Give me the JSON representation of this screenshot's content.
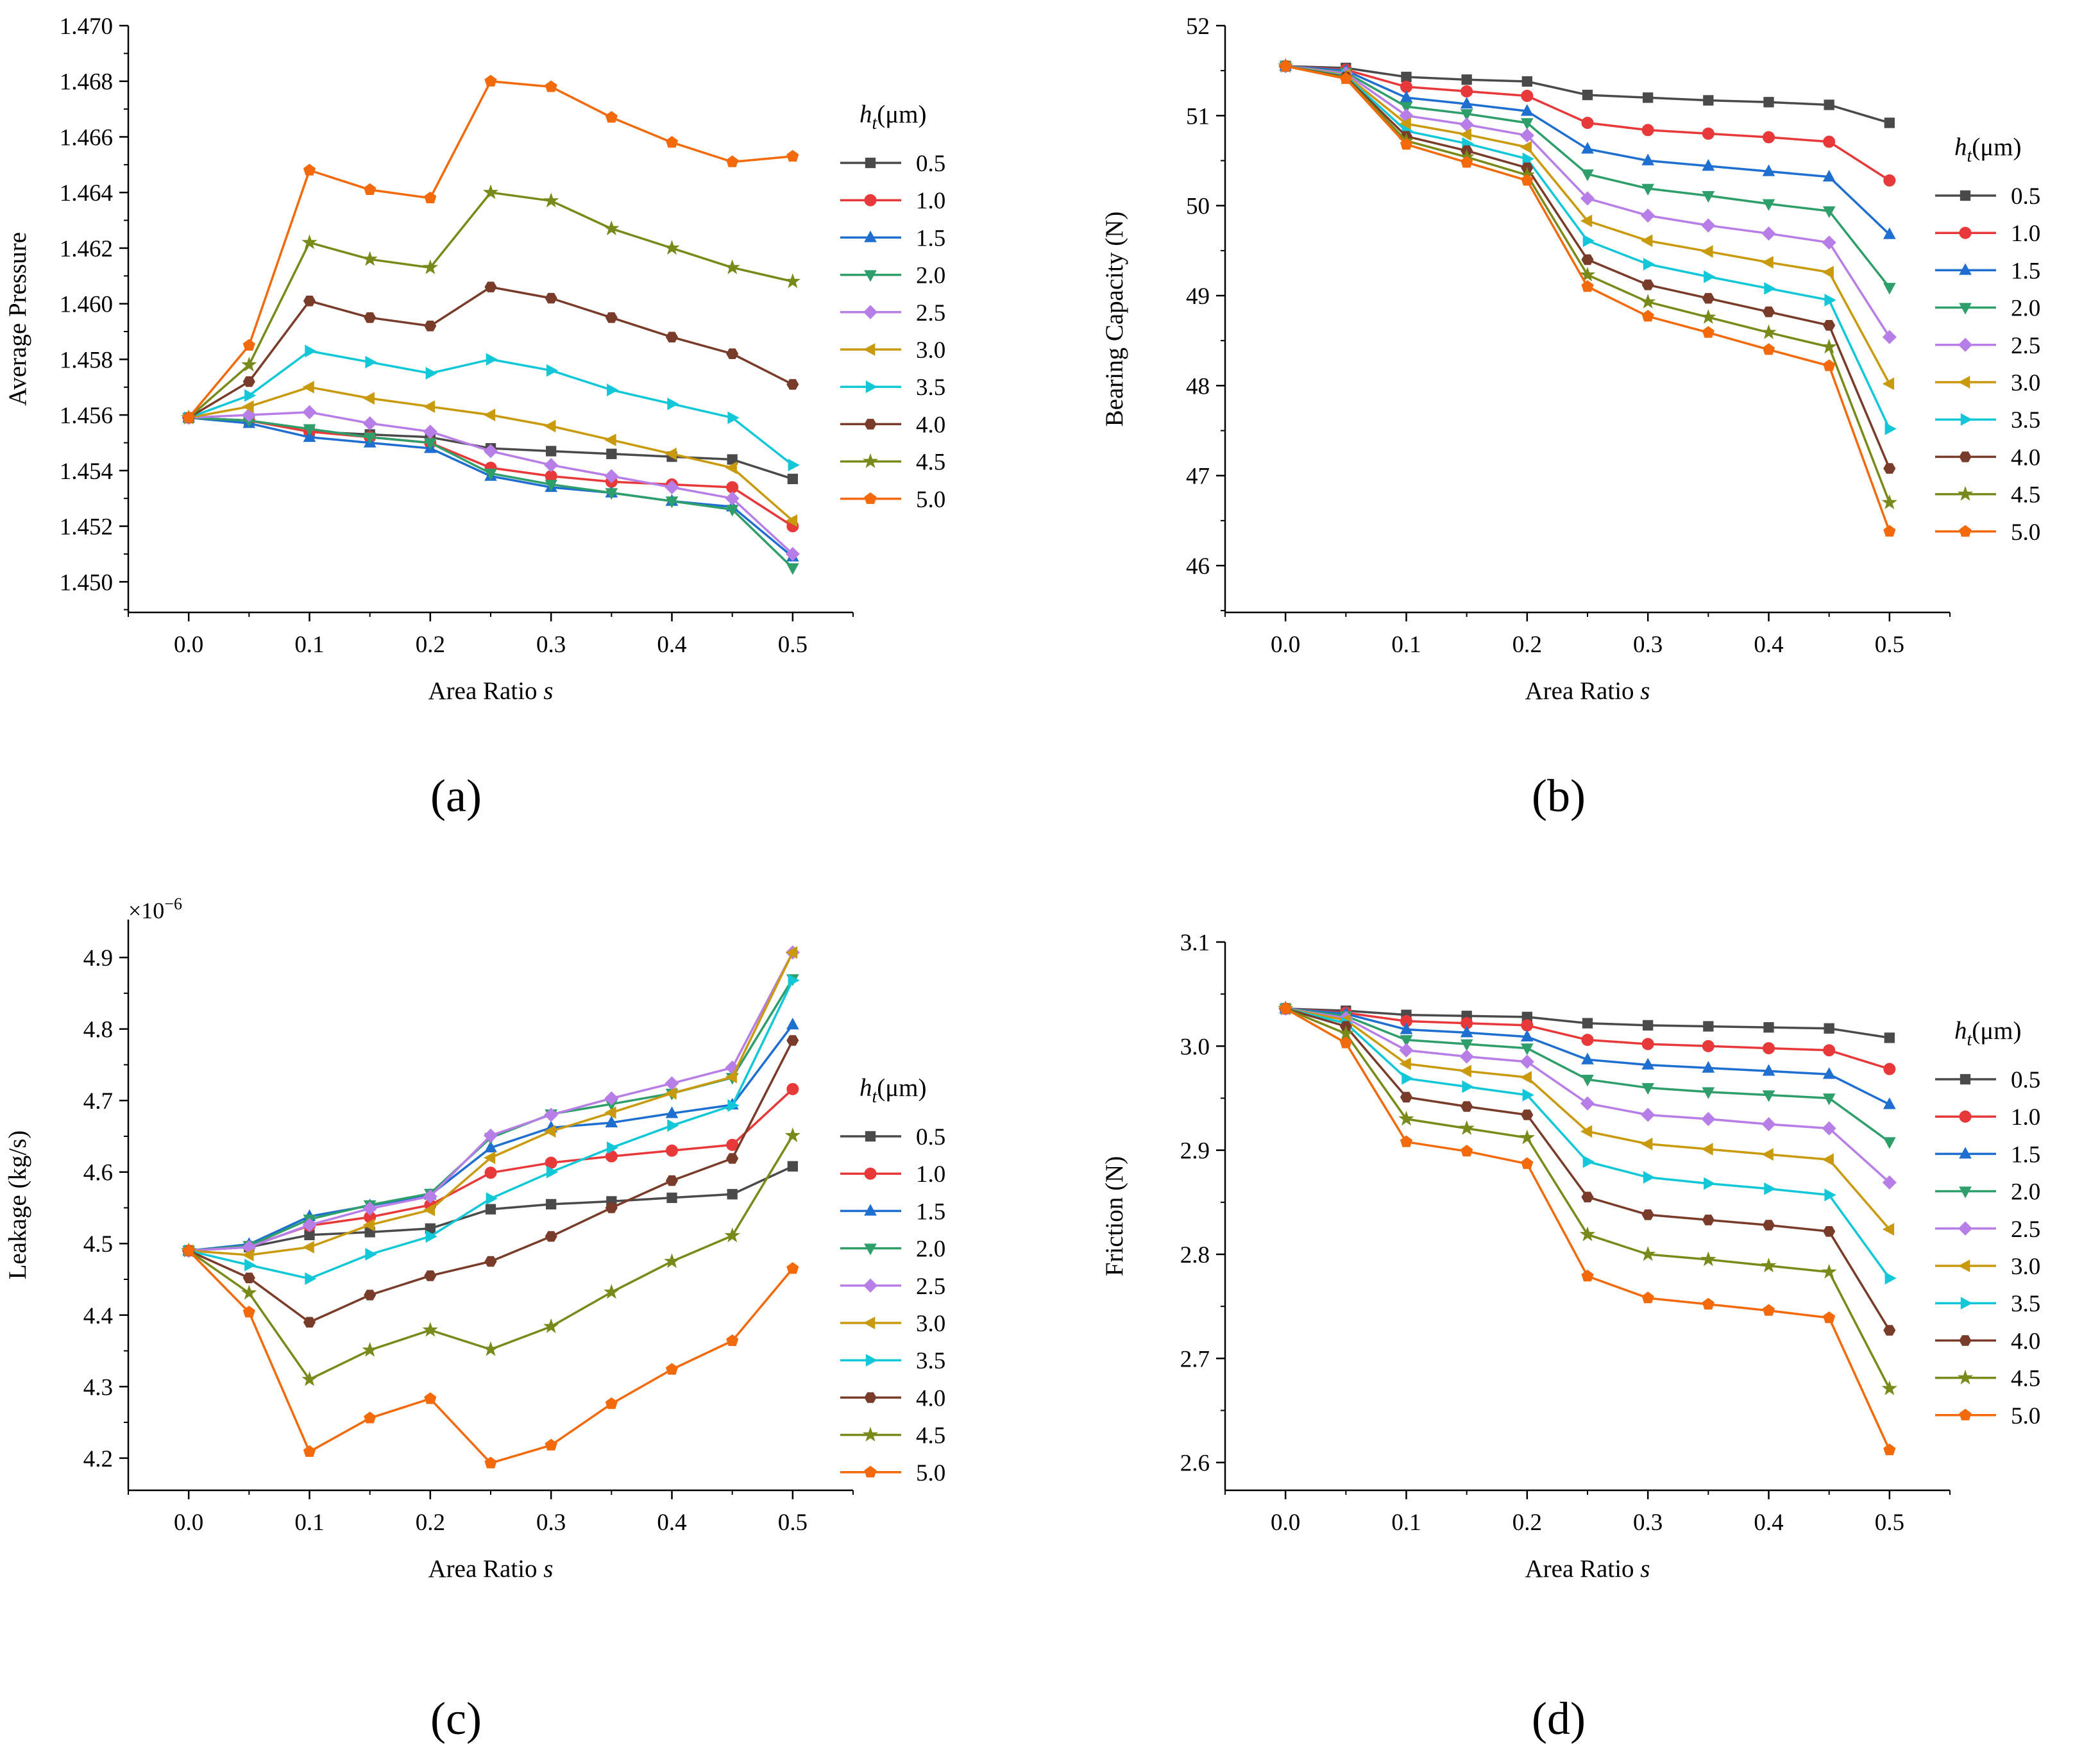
{
  "legend_title": "(μm)",
  "legend_title_var": "h",
  "legend_title_sub": "t",
  "series_colors": [
    "#4a4a4a",
    "#e8393a",
    "#1f6fd1",
    "#2e9e6a",
    "#b87ee8",
    "#c99a0e",
    "#12c7d8",
    "#7a3c2a",
    "#7a8a1a",
    "#f26a0c"
  ],
  "series_markers": [
    "square",
    "circle",
    "triangle-up",
    "triangle-down",
    "diamond",
    "triangle-left",
    "triangle-right",
    "hexagon",
    "star",
    "pentagon"
  ],
  "chart_data": [
    {
      "type": "line",
      "panel": "(a)",
      "title": "",
      "xlabel": "Area Ratio",
      "xlabel_var": "s",
      "ylabel": "Average Pressure",
      "x": [
        0.0,
        0.05,
        0.1,
        0.15,
        0.2,
        0.25,
        0.3,
        0.35,
        0.4,
        0.45,
        0.5
      ],
      "xlim": [
        -0.05,
        0.55
      ],
      "ylim": [
        1.4489,
        1.47
      ],
      "xticks": [
        0.0,
        0.1,
        0.2,
        0.3,
        0.4,
        0.5
      ],
      "xtick_labels": [
        "0.0",
        "0.1",
        "0.2",
        "0.3",
        "0.4",
        "0.5"
      ],
      "yticks": [
        1.45,
        1.452,
        1.454,
        1.456,
        1.458,
        1.46,
        1.462,
        1.464,
        1.466,
        1.468,
        1.47
      ],
      "ytick_labels": [
        "1.450",
        "1.452",
        "1.454",
        "1.456",
        "1.458",
        "1.460",
        "1.462",
        "1.464",
        "1.466",
        "1.468",
        "1.470"
      ],
      "multiplier": "",
      "series": [
        {
          "name": "0.5",
          "values": [
            1.4559,
            1.4558,
            1.4554,
            1.4553,
            1.4552,
            1.4548,
            1.4547,
            1.4546,
            1.4545,
            1.4544,
            1.4537
          ]
        },
        {
          "name": "1.0",
          "values": [
            1.4559,
            1.4558,
            1.4554,
            1.4552,
            1.455,
            1.4541,
            1.4538,
            1.4536,
            1.4535,
            1.4534,
            1.452
          ]
        },
        {
          "name": "1.5",
          "values": [
            1.4559,
            1.4557,
            1.4552,
            1.455,
            1.4548,
            1.4538,
            1.4534,
            1.4532,
            1.4529,
            1.4527,
            1.4509
          ]
        },
        {
          "name": "2.0",
          "values": [
            1.4559,
            1.4558,
            1.4555,
            1.4552,
            1.455,
            1.4539,
            1.4535,
            1.4532,
            1.4529,
            1.4526,
            1.4505
          ]
        },
        {
          "name": "2.5",
          "values": [
            1.4559,
            1.456,
            1.4561,
            1.4557,
            1.4554,
            1.4547,
            1.4542,
            1.4538,
            1.4534,
            1.453,
            1.451
          ]
        },
        {
          "name": "3.0",
          "values": [
            1.4559,
            1.4563,
            1.457,
            1.4566,
            1.4563,
            1.456,
            1.4556,
            1.4551,
            1.4546,
            1.4541,
            1.4522
          ]
        },
        {
          "name": "3.5",
          "values": [
            1.4559,
            1.4567,
            1.4583,
            1.4579,
            1.4575,
            1.458,
            1.4576,
            1.4569,
            1.4564,
            1.4559,
            1.4542
          ]
        },
        {
          "name": "4.0",
          "values": [
            1.4559,
            1.4572,
            1.4601,
            1.4595,
            1.4592,
            1.4606,
            1.4602,
            1.4595,
            1.4588,
            1.4582,
            1.4571
          ]
        },
        {
          "name": "4.5",
          "values": [
            1.4559,
            1.4578,
            1.4622,
            1.4616,
            1.4613,
            1.464,
            1.4637,
            1.4627,
            1.462,
            1.4613,
            1.4608
          ]
        },
        {
          "name": "5.0",
          "values": [
            1.4559,
            1.4585,
            1.4648,
            1.4641,
            1.4638,
            1.468,
            1.4678,
            1.4667,
            1.4658,
            1.4651,
            1.4653
          ]
        }
      ]
    },
    {
      "type": "line",
      "panel": "(b)",
      "title": "",
      "xlabel": "Area Ratio",
      "xlabel_var": "s",
      "ylabel": "Bearing Capacity (N)",
      "x": [
        0.0,
        0.05,
        0.1,
        0.15,
        0.2,
        0.25,
        0.3,
        0.35,
        0.4,
        0.45,
        0.5
      ],
      "xlim": [
        -0.05,
        0.55
      ],
      "ylim": [
        45.48,
        52.0
      ],
      "xticks": [
        0.0,
        0.1,
        0.2,
        0.3,
        0.4,
        0.5
      ],
      "xtick_labels": [
        "0.0",
        "0.1",
        "0.2",
        "0.3",
        "0.4",
        "0.5"
      ],
      "yticks": [
        46,
        47,
        48,
        49,
        50,
        51,
        52
      ],
      "ytick_labels": [
        "46",
        "47",
        "48",
        "49",
        "50",
        "51",
        "52"
      ],
      "multiplier": "",
      "series": [
        {
          "name": "0.5",
          "values": [
            51.55,
            51.53,
            51.43,
            51.4,
            51.38,
            51.23,
            51.2,
            51.17,
            51.15,
            51.12,
            50.92
          ]
        },
        {
          "name": "1.0",
          "values": [
            51.55,
            51.51,
            51.32,
            51.27,
            51.22,
            50.92,
            50.84,
            50.8,
            50.76,
            50.71,
            50.28
          ]
        },
        {
          "name": "1.5",
          "values": [
            51.55,
            51.5,
            51.2,
            51.13,
            51.05,
            50.63,
            50.5,
            50.44,
            50.38,
            50.32,
            49.68
          ]
        },
        {
          "name": "2.0",
          "values": [
            51.55,
            51.48,
            51.1,
            51.02,
            50.92,
            50.35,
            50.19,
            50.11,
            50.02,
            49.94,
            49.09
          ]
        },
        {
          "name": "2.5",
          "values": [
            51.55,
            51.47,
            51.0,
            50.9,
            50.78,
            50.08,
            49.89,
            49.78,
            49.69,
            49.59,
            48.54
          ]
        },
        {
          "name": "3.0",
          "values": [
            51.55,
            51.45,
            50.91,
            50.79,
            50.65,
            49.83,
            49.61,
            49.49,
            49.37,
            49.26,
            48.02
          ]
        },
        {
          "name": "3.5",
          "values": [
            51.55,
            51.44,
            50.83,
            50.69,
            50.52,
            49.61,
            49.35,
            49.21,
            49.08,
            48.95,
            47.52
          ]
        },
        {
          "name": "4.0",
          "values": [
            51.55,
            51.43,
            50.77,
            50.61,
            50.42,
            49.4,
            49.12,
            48.97,
            48.82,
            48.67,
            47.08
          ]
        },
        {
          "name": "4.5",
          "values": [
            51.55,
            51.42,
            50.72,
            50.54,
            50.34,
            49.23,
            48.93,
            48.76,
            48.59,
            48.43,
            46.7
          ]
        },
        {
          "name": "5.0",
          "values": [
            51.55,
            51.41,
            50.68,
            50.48,
            50.28,
            49.1,
            48.77,
            48.59,
            48.4,
            48.22,
            46.38
          ]
        }
      ]
    },
    {
      "type": "line",
      "panel": "(c)",
      "title": "",
      "xlabel": "Area Ratio",
      "xlabel_var": "s",
      "ylabel": "Leakage (kg/s)",
      "x": [
        0.0,
        0.05,
        0.1,
        0.15,
        0.2,
        0.25,
        0.3,
        0.35,
        0.4,
        0.45,
        0.5
      ],
      "xlim": [
        -0.05,
        0.55
      ],
      "ylim": [
        4.155,
        4.953
      ],
      "xticks": [
        0.0,
        0.1,
        0.2,
        0.3,
        0.4,
        0.5
      ],
      "xtick_labels": [
        "0.0",
        "0.1",
        "0.2",
        "0.3",
        "0.4",
        "0.5"
      ],
      "yticks": [
        4.2,
        4.3,
        4.4,
        4.5,
        4.6,
        4.7,
        4.8,
        4.9
      ],
      "ytick_labels": [
        "4.2",
        "4.3",
        "4.4",
        "4.5",
        "4.6",
        "4.7",
        "4.8",
        "4.9"
      ],
      "multiplier": "×10",
      "multiplier_exp": "−6",
      "series": [
        {
          "name": "0.5",
          "values": [
            4.49,
            4.495,
            4.512,
            4.516,
            4.521,
            4.548,
            4.555,
            4.559,
            4.564,
            4.569,
            4.608
          ]
        },
        {
          "name": "1.0",
          "values": [
            4.49,
            4.496,
            4.525,
            4.537,
            4.554,
            4.599,
            4.613,
            4.622,
            4.63,
            4.638,
            4.716
          ]
        },
        {
          "name": "1.5",
          "values": [
            4.49,
            4.499,
            4.538,
            4.553,
            4.568,
            4.634,
            4.662,
            4.669,
            4.682,
            4.694,
            4.806
          ]
        },
        {
          "name": "2.0",
          "values": [
            4.49,
            4.497,
            4.534,
            4.554,
            4.57,
            4.648,
            4.681,
            4.695,
            4.71,
            4.732,
            4.87
          ]
        },
        {
          "name": "2.5",
          "values": [
            4.49,
            4.495,
            4.526,
            4.549,
            4.566,
            4.651,
            4.68,
            4.703,
            4.724,
            4.746,
            4.907
          ]
        },
        {
          "name": "3.0",
          "values": [
            4.49,
            4.484,
            4.495,
            4.526,
            4.547,
            4.62,
            4.657,
            4.683,
            4.71,
            4.733,
            4.907
          ]
        },
        {
          "name": "3.5",
          "values": [
            4.49,
            4.47,
            4.451,
            4.485,
            4.51,
            4.563,
            4.6,
            4.634,
            4.665,
            4.693,
            4.868
          ]
        },
        {
          "name": "4.0",
          "values": [
            4.49,
            4.452,
            4.39,
            4.428,
            4.455,
            4.475,
            4.51,
            4.55,
            4.588,
            4.619,
            4.784
          ]
        },
        {
          "name": "4.5",
          "values": [
            4.49,
            4.431,
            4.31,
            4.351,
            4.379,
            4.352,
            4.384,
            4.432,
            4.475,
            4.511,
            4.651
          ]
        },
        {
          "name": "5.0",
          "values": [
            4.49,
            4.404,
            4.209,
            4.256,
            4.283,
            4.193,
            4.218,
            4.276,
            4.324,
            4.364,
            4.465
          ]
        }
      ]
    },
    {
      "type": "line",
      "panel": "(d)",
      "title": "",
      "xlabel": "Area Ratio",
      "xlabel_var": "s",
      "ylabel": "Friction (N)",
      "x": [
        0.0,
        0.05,
        0.1,
        0.15,
        0.2,
        0.25,
        0.3,
        0.35,
        0.4,
        0.45,
        0.5
      ],
      "xlim": [
        -0.05,
        0.55
      ],
      "ylim": [
        2.5733,
        3.1
      ],
      "xticks": [
        0.0,
        0.1,
        0.2,
        0.3,
        0.4,
        0.5
      ],
      "xtick_labels": [
        "0.0",
        "0.1",
        "0.2",
        "0.3",
        "0.4",
        "0.5"
      ],
      "yticks": [
        2.6,
        2.7,
        2.8,
        2.9,
        3.0,
        3.1
      ],
      "ytick_labels": [
        "2.6",
        "2.7",
        "2.8",
        "2.9",
        "3.0",
        "3.1"
      ],
      "multiplier": "",
      "series": [
        {
          "name": "0.5",
          "values": [
            3.036,
            3.034,
            3.03,
            3.029,
            3.028,
            3.022,
            3.02,
            3.019,
            3.018,
            3.017,
            3.008
          ]
        },
        {
          "name": "1.0",
          "values": [
            3.036,
            3.032,
            3.024,
            3.022,
            3.02,
            3.006,
            3.002,
            3.0,
            2.998,
            2.996,
            2.978
          ]
        },
        {
          "name": "1.5",
          "values": [
            3.036,
            3.031,
            3.016,
            3.013,
            3.009,
            2.987,
            2.982,
            2.979,
            2.976,
            2.973,
            2.944
          ]
        },
        {
          "name": "2.0",
          "values": [
            3.036,
            3.029,
            3.006,
            3.002,
            2.998,
            2.968,
            2.96,
            2.956,
            2.953,
            2.95,
            2.908
          ]
        },
        {
          "name": "2.5",
          "values": [
            3.036,
            3.027,
            2.996,
            2.99,
            2.985,
            2.945,
            2.934,
            2.93,
            2.925,
            2.921,
            2.869
          ]
        },
        {
          "name": "3.0",
          "values": [
            3.036,
            3.025,
            2.983,
            2.976,
            2.97,
            2.918,
            2.906,
            2.901,
            2.896,
            2.891,
            2.824
          ]
        },
        {
          "name": "3.5",
          "values": [
            3.036,
            3.022,
            2.969,
            2.961,
            2.953,
            2.889,
            2.874,
            2.868,
            2.863,
            2.857,
            2.777
          ]
        },
        {
          "name": "4.0",
          "values": [
            3.036,
            3.019,
            2.951,
            2.942,
            2.934,
            2.855,
            2.838,
            2.833,
            2.828,
            2.822,
            2.727
          ]
        },
        {
          "name": "4.5",
          "values": [
            3.036,
            3.012,
            2.93,
            2.921,
            2.912,
            2.819,
            2.8,
            2.795,
            2.789,
            2.783,
            2.671
          ]
        },
        {
          "name": "5.0",
          "values": [
            3.036,
            3.003,
            2.908,
            2.899,
            2.887,
            2.779,
            2.758,
            2.752,
            2.746,
            2.739,
            2.612
          ]
        }
      ]
    }
  ]
}
